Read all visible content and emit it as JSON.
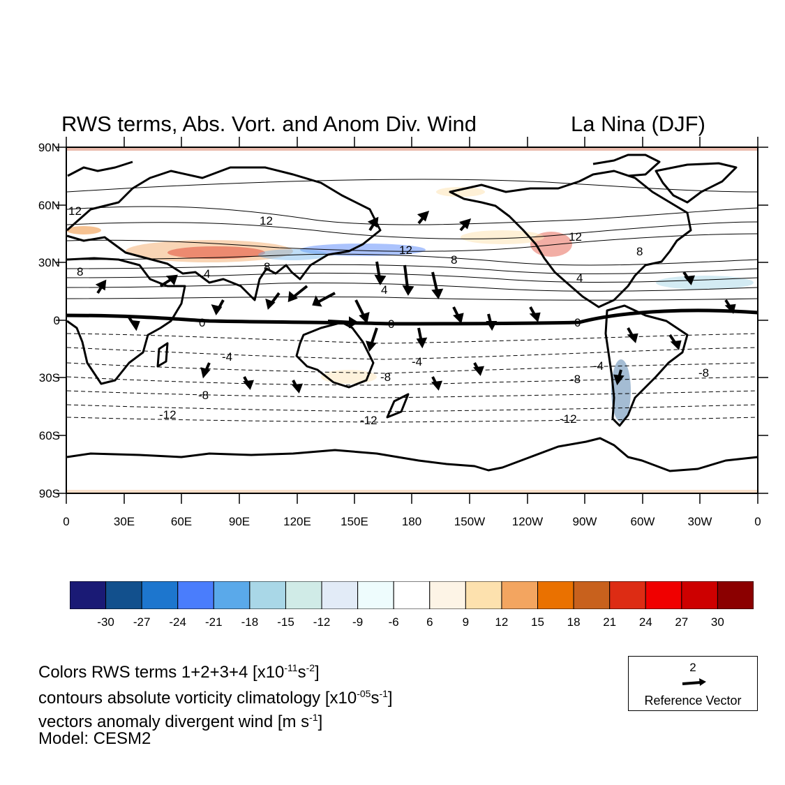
{
  "title_left": "RWS terms, Abs. Vort. and Anom Div. Wind",
  "title_right": "La Nina  (DJF)",
  "lat_labels": [
    "90N",
    "60N",
    "30N",
    "0",
    "30S",
    "60S",
    "90S"
  ],
  "lon_labels": [
    "0",
    "30E",
    "60E",
    "90E",
    "120E",
    "150E",
    "180",
    "150W",
    "120W",
    "90W",
    "60W",
    "30W",
    "0"
  ],
  "contour_labels": [
    "12",
    "12",
    "12",
    "12",
    "8",
    "8",
    "8",
    "8",
    "4",
    "4",
    "4",
    "0",
    "0",
    "0",
    "-4",
    "-4",
    "-4",
    "-8",
    "-8",
    "-8",
    "-8",
    "-12",
    "-12",
    "-12"
  ],
  "colorbar": {
    "tick_labels": [
      "-30",
      "-27",
      "-24",
      "-21",
      "-18",
      "-15",
      "-12",
      "-9",
      "-6",
      "6",
      "9",
      "12",
      "15",
      "18",
      "21",
      "24",
      "27",
      "30"
    ],
    "colors": [
      "#1a1a75",
      "#12508d",
      "#1d76ce",
      "#4a7dfc",
      "#5aa9ea",
      "#a9d7e7",
      "#d0ebe7",
      "#e2ebf7",
      "#eefcfd",
      "#ffffff",
      "#fdf4e6",
      "#fde1ae",
      "#f3a560",
      "#ea7100",
      "#c8611d",
      "#dd2c14",
      "#f00000",
      "#cd0000",
      "#8b0000"
    ]
  },
  "info_lines": {
    "l1_prefix": "Colors RWS terms 1+2+3+4 [x10",
    "l1_sup1": "-11",
    "l1_mid": "s",
    "l1_sup2": "-2",
    "l1_suffix": "]",
    "l2_prefix": "contours absolute vorticity climatology [x10",
    "l2_sup1": "-05",
    "l2_mid": "s",
    "l2_sup2": "-1",
    "l2_suffix": "]",
    "l3_prefix": "vectors anomaly divergent wind [m s",
    "l3_sup": "-1",
    "l3_suffix": "]",
    "l4": "Model: CESM2"
  },
  "reference_vector": {
    "value": "2",
    "label": "Reference Vector"
  }
}
